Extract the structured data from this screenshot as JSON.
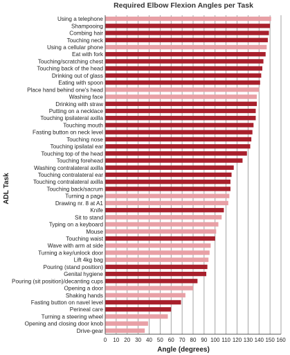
{
  "chart_data": {
    "type": "bar",
    "orientation": "horizontal",
    "title": "Required Elbow Flexion Angles per Task",
    "xlabel": "Angle (degrees)",
    "ylabel": "ADL Task",
    "xlim": [
      0,
      160
    ],
    "xticks": [
      "0",
      "10",
      "20",
      "30",
      "40",
      "50",
      "60",
      "70",
      "80",
      "90",
      "100",
      "110",
      "120",
      "130",
      "140",
      "150",
      "160"
    ],
    "grid": "vertical",
    "colors": {
      "dark": "#a8202c",
      "light": "#e8a0a6",
      "grid": "#8c8c8c",
      "axis": "#555555"
    },
    "categories": [
      "Using a telephone",
      "Shampooing",
      "Combing hair",
      "Touching neck",
      "Using a cellular phone",
      "Eat with fork",
      "Touching/scratching chest",
      "Touching back of the head",
      "Drinking out of glass",
      "Eating with spoon",
      "Place hand behind one's head",
      "Washing face",
      "Drinking with straw",
      "Putting on a necklace",
      "Touching ipsilateral axilla",
      "Touching mouth",
      "Fasting button on neck level",
      "Touching nose",
      "Touching ipsilatal ear",
      "Touching top of the head",
      "Touching forehead",
      "Washing contralateral axilla",
      "Touching contralateral ear",
      "Touching contralateral axilla",
      "Touching back/sacrum",
      "Turning a page",
      "Drawing nr. 8 at A1",
      "Knife",
      "Sit to stand",
      "Typing on a keyboard",
      "Mouse",
      "Touching waist",
      "Wave with arm at side",
      "Turning a key/unlock door",
      "Lift 4kg bag",
      "Pouring (stand position)",
      "Genital hygiene",
      "Pouring (sit position)/decanting cups",
      "Opening a door",
      "Shaking hands",
      "Fasting button on navel level",
      "Perineal care",
      "Turning a steering wheel",
      "Opening and closing door knob",
      "Drive-gear"
    ],
    "values": [
      151,
      150,
      149,
      148,
      147,
      146,
      144,
      143,
      142,
      141,
      140,
      138,
      138,
      137,
      137,
      135,
      134,
      133,
      132,
      129,
      125,
      117,
      115,
      114,
      114,
      113,
      112,
      108,
      106,
      103,
      101,
      100,
      96,
      95,
      94,
      93,
      92,
      84,
      80,
      73,
      69,
      60,
      57,
      39,
      36
    ],
    "shades": [
      "light",
      "dark",
      "dark",
      "dark",
      "light",
      "dark",
      "dark",
      "dark",
      "dark",
      "dark",
      "light",
      "light",
      "dark",
      "dark",
      "dark",
      "dark",
      "dark",
      "dark",
      "dark",
      "dark",
      "dark",
      "dark",
      "dark",
      "dark",
      "dark",
      "light",
      "light",
      "dark",
      "light",
      "light",
      "light",
      "dark",
      "light",
      "light",
      "light",
      "dark",
      "dark",
      "dark",
      "light",
      "light",
      "dark",
      "dark",
      "light",
      "light",
      "light"
    ]
  }
}
